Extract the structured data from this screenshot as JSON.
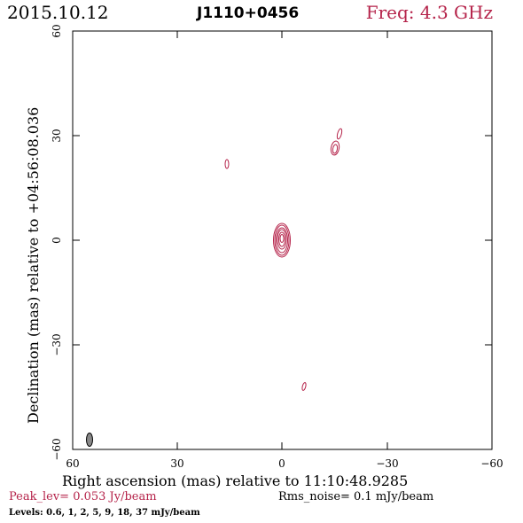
{
  "header": {
    "date": "2015.10.12",
    "source": "J1110+0456",
    "freq": "Freq: 4.3 GHz"
  },
  "axes": {
    "xlabel": "Right ascension (mas) relative to 11:10:48.9285",
    "ylabel": "Declination (mas) relative to +04:56:08.036",
    "xticks": [
      "60",
      "30",
      "0",
      "−30",
      "−60"
    ],
    "yticks": [
      "60",
      "30",
      "0",
      "−30",
      "−60"
    ],
    "xlim": [
      60,
      -60
    ],
    "ylim": [
      -60,
      60
    ]
  },
  "footer": {
    "peak": "Peak_lev=  0.053 Jy/beam",
    "rms": "Rms_noise=  0.1 mJy/beam",
    "levels": "Levels: 0.6,   1,   2,   5,   9,   18,   37 mJy/beam"
  },
  "colors": {
    "contour": "#b5234a",
    "beam": "#888888"
  }
}
